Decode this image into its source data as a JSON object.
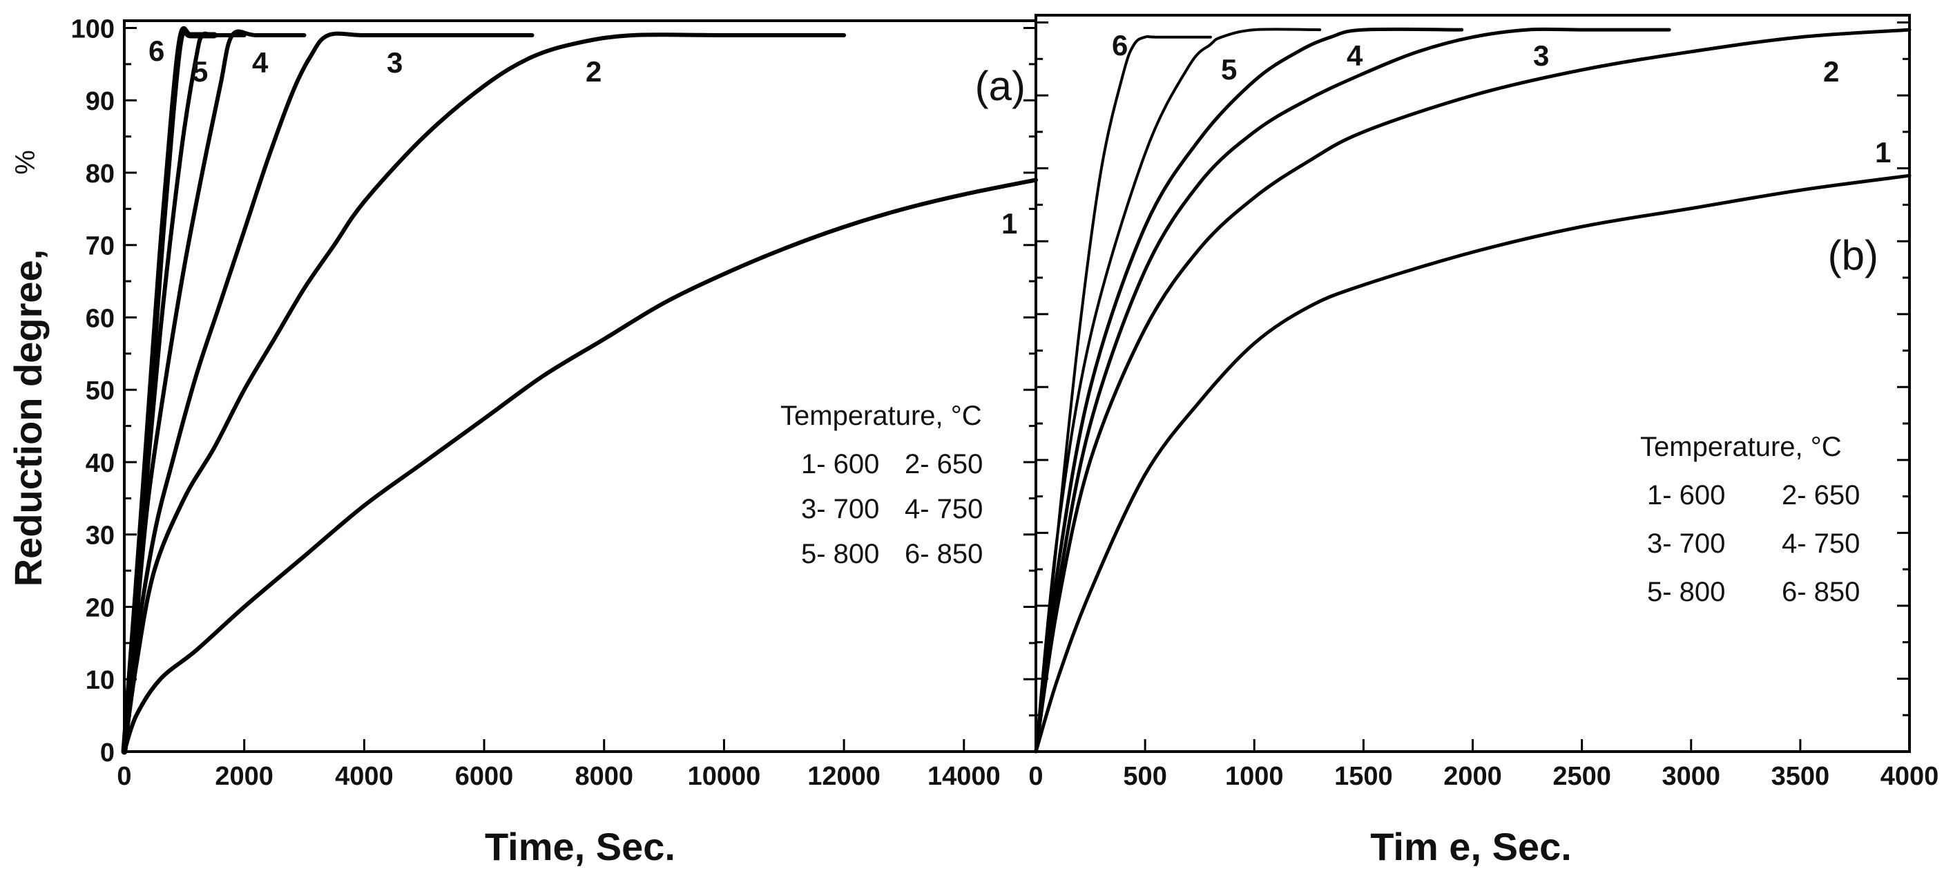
{
  "chart_data": [
    {
      "panel": "(a)",
      "type": "line",
      "xlabel": "Time,  Sec.",
      "ylabel": "Reduction degree,",
      "ylabel_unit": "%",
      "xlim": [
        0,
        15200
      ],
      "ylim": [
        0,
        101
      ],
      "xticks": [
        0,
        2000,
        4000,
        6000,
        8000,
        10000,
        12000,
        14000
      ],
      "yticks": [
        0,
        10,
        20,
        30,
        40,
        50,
        60,
        70,
        80,
        90,
        100
      ],
      "legend_title": "Temperature, °C",
      "legend_entries": [
        "1- 600",
        "2- 650",
        "3- 700",
        "4- 750",
        "5- 800",
        "6- 850"
      ],
      "series": [
        {
          "name": "1",
          "label": "1",
          "x": [
            0,
            200,
            600,
            1200,
            2000,
            3000,
            4000,
            5000,
            6000,
            7000,
            8000,
            9000,
            10000,
            11000,
            12000,
            13000,
            14000,
            15200
          ],
          "y": [
            0,
            5,
            10,
            14,
            20,
            27,
            34,
            40,
            46,
            52,
            57,
            62,
            66,
            69.5,
            72.5,
            75,
            77,
            79
          ]
        },
        {
          "name": "2",
          "label": "2",
          "x": [
            0,
            200,
            500,
            1000,
            1500,
            2000,
            2500,
            3000,
            3500,
            4000,
            5000,
            6000,
            6800,
            7600,
            8500,
            10000,
            12000
          ],
          "y": [
            0,
            12,
            25,
            35,
            42,
            50,
            57,
            64,
            70,
            76,
            85,
            92,
            96,
            98,
            99,
            99,
            99
          ]
        },
        {
          "name": "3",
          "label": "3",
          "x": [
            0,
            200,
            500,
            800,
            1200,
            1600,
            2000,
            2400,
            2800,
            3100,
            3400,
            4000,
            5000,
            6800
          ],
          "y": [
            0,
            15,
            30,
            40,
            52,
            62,
            72,
            82,
            91,
            96,
            99,
            99,
            99,
            99
          ]
        },
        {
          "name": "4",
          "label": "4",
          "x": [
            0,
            200,
            400,
            700,
            1000,
            1300,
            1600,
            1800,
            2200,
            3000
          ],
          "y": [
            0,
            18,
            35,
            52,
            67,
            80,
            92,
            99,
            99,
            99
          ]
        },
        {
          "name": "5",
          "label": "5",
          "x": [
            0,
            200,
            400,
            600,
            800,
            1000,
            1200,
            1300,
            1500,
            2000
          ],
          "y": [
            0,
            20,
            40,
            58,
            73,
            86,
            96,
            99,
            99,
            99
          ]
        },
        {
          "name": "6",
          "label": "6",
          "x": [
            0,
            200,
            400,
            600,
            800,
            950,
            1100,
            1500
          ],
          "y": [
            0,
            22,
            45,
            68,
            88,
            99,
            99,
            99
          ]
        }
      ]
    },
    {
      "panel": "(b)",
      "type": "line",
      "xlabel": "Tim e, Sec.",
      "xlim": [
        0,
        4000
      ],
      "ylim": [
        0,
        101
      ],
      "xticks": [
        0,
        500,
        1000,
        1500,
        2000,
        2500,
        3000,
        3500,
        4000
      ],
      "yticks": [
        0,
        10,
        20,
        30,
        40,
        50,
        60,
        70,
        80,
        90,
        100
      ],
      "legend_title": "Temperature, °C",
      "legend_entries": [
        "1- 600",
        "2- 650",
        "3- 700",
        "4- 750",
        "5- 800",
        "6- 850"
      ],
      "series": [
        {
          "name": "1",
          "label": "1",
          "x": [
            0,
            100,
            250,
            500,
            750,
            1000,
            1250,
            1500,
            2000,
            2500,
            3000,
            3500,
            4000
          ],
          "y": [
            0,
            10,
            22,
            38,
            48,
            56,
            61,
            64,
            68.5,
            72,
            74.5,
            77,
            79
          ]
        },
        {
          "name": "2",
          "label": "2",
          "x": [
            0,
            100,
            250,
            500,
            750,
            1000,
            1250,
            1500,
            2000,
            2500,
            3000,
            3500,
            4000
          ],
          "y": [
            0,
            20,
            40,
            58,
            69,
            76,
            81,
            85,
            90,
            93.5,
            96,
            98,
            99
          ]
        },
        {
          "name": "3",
          "label": "3",
          "x": [
            0,
            100,
            250,
            500,
            750,
            1000,
            1250,
            1500,
            1750,
            2000,
            2250,
            2500,
            2900
          ],
          "y": [
            0,
            22,
            45,
            66,
            78,
            85,
            89.5,
            93,
            96,
            98,
            99,
            99,
            99
          ]
        },
        {
          "name": "4",
          "label": "4",
          "x": [
            0,
            100,
            250,
            500,
            750,
            1000,
            1200,
            1350,
            1500,
            1950
          ],
          "y": [
            0,
            25,
            50,
            72,
            84,
            92,
            96,
            98,
            99,
            99
          ]
        },
        {
          "name": "5",
          "label": "5",
          "x": [
            0,
            100,
            250,
            500,
            700,
            800,
            850,
            1000,
            1300
          ],
          "y": [
            0,
            30,
            57,
            82,
            94,
            97,
            98,
            99,
            99
          ]
        },
        {
          "name": "6",
          "label": "6",
          "x": [
            0,
            100,
            200,
            300,
            400,
            450,
            500,
            550,
            800
          ],
          "y": [
            0,
            30,
            58,
            80,
            93,
            97,
            98,
            98,
            98
          ]
        }
      ]
    }
  ]
}
